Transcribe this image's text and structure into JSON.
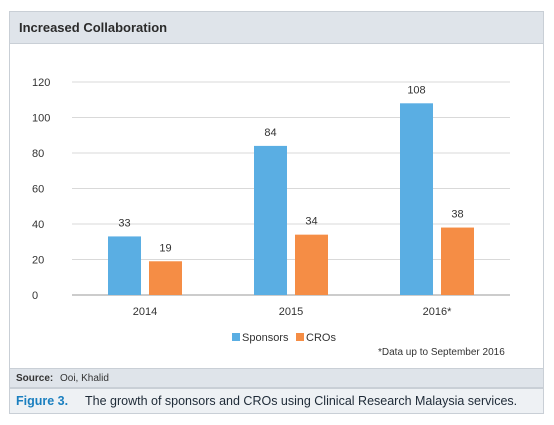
{
  "header": {
    "title": "Increased Collaboration"
  },
  "source": {
    "label": "Source:",
    "text": "Ooi, Khalid"
  },
  "caption": {
    "label": "Figure 3.",
    "text": "The growth of sponsors and CROs using Clinical Research Malaysia services."
  },
  "note": "*Data up to September 2016",
  "colors": {
    "Sponsors": "#5aaee3",
    "CROs": "#f58d45"
  },
  "chart_data": {
    "type": "bar",
    "categories": [
      "2014",
      "2015",
      "2016*"
    ],
    "series": [
      {
        "name": "Sponsors",
        "values": [
          33,
          84,
          108
        ]
      },
      {
        "name": "CROs",
        "values": [
          19,
          34,
          38
        ]
      }
    ],
    "ylim": [
      0,
      120
    ],
    "yticks": [
      0,
      20,
      40,
      60,
      80,
      100,
      120
    ],
    "grid": true,
    "legend": "bottom-center"
  }
}
